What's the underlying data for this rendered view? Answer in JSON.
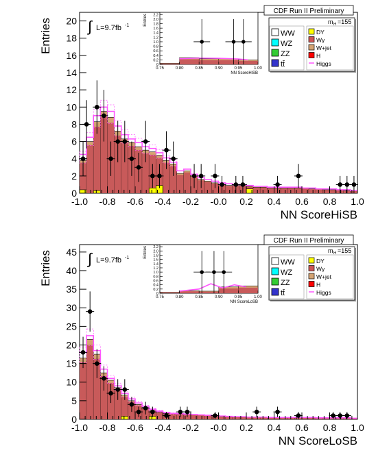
{
  "chart_data": [
    {
      "type": "bar",
      "xlabel": "NN ScoreHiSB",
      "ylabel": "Entries",
      "lumi_label": "L=9.7fb",
      "lumi_sup": "-1",
      "integral_symbol": "∫",
      "header": "CDF Run II Preliminary",
      "mass_label": "m",
      "mass_sub": "H",
      "mass_value": "=155",
      "xlim": [
        -1.0,
        1.0
      ],
      "ylim": [
        0,
        21
      ],
      "x_ticks": [
        "-1.0",
        "-0.8",
        "-0.6",
        "-0.4",
        "-0.2",
        "-0.0",
        "0.2",
        "0.4",
        "0.6",
        "0.8",
        "1.0"
      ],
      "y_ticks": [
        "0",
        "2",
        "4",
        "6",
        "8",
        "10",
        "12",
        "14",
        "16",
        "18",
        "20"
      ],
      "legend_left": [
        "WW",
        "WZ",
        "ZZ",
        "tt̄"
      ],
      "legend_right": [
        "DY",
        "Wγ",
        "W+jet",
        "H",
        "Higgs"
      ],
      "bin_edges_range": [
        -1.0,
        1.0
      ],
      "n_bins": 40,
      "background_total": [
        3.8,
        6.0,
        8.3,
        9.5,
        8.8,
        7.2,
        6.3,
        5.9,
        5.4,
        5.0,
        4.8,
        4.4,
        3.8,
        3.4,
        2.3,
        2.6,
        2.0,
        1.6,
        1.4,
        1.2,
        1.0,
        0.9,
        0.9,
        0.9,
        0.8,
        0.7,
        0.7,
        0.6,
        0.6,
        0.6,
        0.6,
        0.6,
        0.6,
        0.5,
        0.5,
        0.4,
        0.4,
        0.4,
        0.3,
        0.3
      ],
      "dy": [
        0.4,
        0.0,
        0.3,
        0.0,
        0.0,
        0.0,
        0.0,
        0.0,
        0.0,
        0.0,
        0.6,
        0.9,
        0.0,
        0.0,
        0.0,
        0.0,
        0.0,
        0.0,
        0.0,
        0.0,
        0.0,
        0.0,
        0.0,
        0.0,
        0.5,
        0.0,
        0.0,
        0.0,
        0.0,
        0.0,
        0.0,
        0.0,
        0.0,
        0.0,
        0.0,
        0.0,
        0.0,
        0.0,
        0.0,
        0.0
      ],
      "higgs": [
        4.5,
        6.5,
        9.0,
        10.0,
        9.5,
        7.8,
        6.8,
        6.3,
        5.9,
        5.4,
        5.2,
        4.7,
        4.1,
        3.6,
        2.6,
        2.8,
        2.2,
        1.8,
        1.6,
        1.4,
        1.2,
        1.1,
        1.0,
        1.0,
        0.9,
        0.8,
        0.8,
        0.7,
        0.7,
        0.7,
        0.7,
        0.7,
        0.6,
        0.6,
        0.5,
        0.5,
        0.5,
        0.4,
        0.4,
        0.3
      ],
      "data_points": [
        {
          "x": -0.975,
          "y": 4,
          "err": 2.0
        },
        {
          "x": -0.95,
          "y": 8,
          "err": 2.8
        },
        {
          "x": -0.875,
          "y": 10,
          "err": 3.1
        },
        {
          "x": -0.825,
          "y": 9,
          "err": 3.0
        },
        {
          "x": -0.775,
          "y": 4,
          "err": 2.0
        },
        {
          "x": -0.725,
          "y": 6,
          "err": 2.4
        },
        {
          "x": -0.675,
          "y": 6,
          "err": 2.4
        },
        {
          "x": -0.625,
          "y": 4,
          "err": 2.0
        },
        {
          "x": -0.575,
          "y": 3,
          "err": 1.7
        },
        {
          "x": -0.525,
          "y": 6,
          "err": 2.4
        },
        {
          "x": -0.475,
          "y": 2,
          "err": 1.4
        },
        {
          "x": -0.425,
          "y": 2,
          "err": 1.4
        },
        {
          "x": -0.375,
          "y": 5,
          "err": 2.2
        },
        {
          "x": -0.325,
          "y": 4,
          "err": 2.0
        },
        {
          "x": -0.175,
          "y": 2,
          "err": 1.4
        },
        {
          "x": -0.125,
          "y": 2,
          "err": 1.4
        },
        {
          "x": -0.025,
          "y": 2,
          "err": 1.4
        },
        {
          "x": 0.025,
          "y": 1,
          "err": 1.0
        },
        {
          "x": 0.125,
          "y": 1,
          "err": 1.0
        },
        {
          "x": 0.175,
          "y": 1,
          "err": 1.0
        },
        {
          "x": 0.425,
          "y": 1,
          "err": 1.0
        },
        {
          "x": 0.575,
          "y": 2,
          "err": 1.4
        },
        {
          "x": 0.875,
          "y": 1,
          "err": 1.0
        },
        {
          "x": 0.925,
          "y": 1,
          "err": 1.0
        },
        {
          "x": 0.975,
          "y": 1,
          "err": 1.0
        }
      ],
      "inset": {
        "xlabel": "NN ScoreHiSB",
        "ylabel": "Entries",
        "xlim": [
          0.75,
          1.0
        ],
        "ylim": [
          0,
          2.3
        ],
        "x_ticks": [
          "0.75",
          "0.80",
          "0.85",
          "0.90",
          "0.95",
          "1.00"
        ],
        "y_ticks": [
          "0",
          "0.2",
          "0.4",
          "0.6",
          "0.8",
          "1.0",
          "1.2",
          "1.4",
          "1.6",
          "1.8",
          "2.0",
          "2.2"
        ],
        "bins_x": [
          0.75,
          0.8,
          0.85,
          0.9,
          0.95,
          1.0
        ],
        "background": [
          0.05,
          0.3,
          0.25,
          0.25,
          0.2
        ],
        "higgs_x": [
          0.8,
          0.85,
          0.9,
          0.95,
          0.975
        ],
        "higgs_y": [
          0.25,
          0.28,
          0.27,
          0.24,
          0.2
        ],
        "points": [
          {
            "x": 0.857,
            "y": 1.0,
            "err": 1.0
          },
          {
            "x": 0.938,
            "y": 1.0,
            "err": 1.0
          },
          {
            "x": 0.963,
            "y": 1.0,
            "err": 1.0
          }
        ]
      }
    },
    {
      "type": "bar",
      "xlabel": "NN ScoreLoSB",
      "ylabel": "Entries",
      "lumi_label": "L=9.7fb",
      "lumi_sup": "-1",
      "integral_symbol": "∫",
      "header": "CDF Run II Preliminary",
      "mass_label": "m",
      "mass_sub": "H",
      "mass_value": "=155",
      "xlim": [
        -1.0,
        1.0
      ],
      "ylim": [
        0,
        47
      ],
      "x_ticks": [
        "-1.0",
        "-0.8",
        "-0.6",
        "-0.4",
        "-0.2",
        "-0.0",
        "0.2",
        "0.4",
        "0.6",
        "0.8",
        "1.0"
      ],
      "y_ticks": [
        "0",
        "5",
        "10",
        "15",
        "20",
        "25",
        "30",
        "35",
        "40",
        "45"
      ],
      "legend_left": [
        "WW",
        "WZ",
        "ZZ",
        "tt̄"
      ],
      "legend_right": [
        "DY",
        "Wγ",
        "W+jet",
        "H",
        "Higgs"
      ],
      "bin_edges_range": [
        -1.0,
        1.0
      ],
      "n_bins": 40,
      "background_total": [
        16.5,
        21.5,
        17.5,
        12.5,
        10.5,
        8.5,
        6.5,
        5.0,
        4.0,
        3.2,
        2.4,
        2.0,
        1.6,
        1.5,
        1.4,
        1.3,
        1.3,
        1.2,
        1.1,
        1.0,
        0.8,
        0.7,
        0.7,
        0.6,
        0.6,
        0.6,
        0.5,
        0.5,
        0.5,
        0.5,
        0.5,
        0.5,
        0.5,
        0.4,
        0.4,
        0.4,
        0.4,
        0.4,
        0.4,
        0.3
      ],
      "dy": [
        0.0,
        0.0,
        0.0,
        0.0,
        0.0,
        0.0,
        0.8,
        0.0,
        0.0,
        0.0,
        0.8,
        0.0,
        0.0,
        0.0,
        0.0,
        0.0,
        0.0,
        0.0,
        0.0,
        0.0,
        0.0,
        0.0,
        0.0,
        0.0,
        0.0,
        0.0,
        0.0,
        0.0,
        0.0,
        0.0,
        0.0,
        0.0,
        0.0,
        0.0,
        0.0,
        0.0,
        0.0,
        0.0,
        0.0,
        0.0
      ],
      "higgs": [
        18.0,
        22.5,
        18.5,
        13.5,
        11.0,
        9.0,
        7.0,
        5.5,
        4.4,
        3.5,
        2.7,
        2.2,
        1.8,
        1.6,
        1.5,
        1.4,
        1.3,
        1.2,
        1.1,
        1.0,
        0.9,
        0.8,
        0.7,
        0.7,
        0.6,
        0.6,
        0.6,
        0.5,
        0.5,
        0.5,
        0.5,
        0.5,
        0.5,
        0.5,
        0.4,
        0.4,
        0.4,
        0.4,
        0.4,
        0.3
      ],
      "data_points": [
        {
          "x": -0.975,
          "y": 18,
          "err": 4.2
        },
        {
          "x": -0.925,
          "y": 29,
          "err": 5.4
        },
        {
          "x": -0.875,
          "y": 15,
          "err": 3.9
        },
        {
          "x": -0.825,
          "y": 11,
          "err": 3.3
        },
        {
          "x": -0.775,
          "y": 7,
          "err": 2.6
        },
        {
          "x": -0.725,
          "y": 8,
          "err": 2.8
        },
        {
          "x": -0.675,
          "y": 8,
          "err": 2.8
        },
        {
          "x": -0.625,
          "y": 4,
          "err": 2.0
        },
        {
          "x": -0.575,
          "y": 2,
          "err": 1.4
        },
        {
          "x": -0.525,
          "y": 3,
          "err": 1.7
        },
        {
          "x": -0.475,
          "y": 2,
          "err": 1.4
        },
        {
          "x": -0.375,
          "y": 1,
          "err": 1.0
        },
        {
          "x": -0.275,
          "y": 2,
          "err": 1.4
        },
        {
          "x": -0.225,
          "y": 2,
          "err": 1.4
        },
        {
          "x": -0.025,
          "y": 1,
          "err": 1.0
        },
        {
          "x": 0.275,
          "y": 2,
          "err": 1.4
        },
        {
          "x": 0.425,
          "y": 2,
          "err": 1.4
        },
        {
          "x": 0.575,
          "y": 1,
          "err": 1.0
        },
        {
          "x": 0.825,
          "y": 1,
          "err": 1.0
        },
        {
          "x": 0.875,
          "y": 1,
          "err": 1.0
        },
        {
          "x": 0.925,
          "y": 1,
          "err": 1.0
        }
      ],
      "inset": {
        "xlabel": "NN ScoreLoSB",
        "ylabel": "Entries",
        "xlim": [
          0.75,
          1.0
        ],
        "ylim": [
          0,
          2.3
        ],
        "x_ticks": [
          "0.75",
          "0.80",
          "0.85",
          "0.90",
          "0.95",
          "1.00"
        ],
        "y_ticks": [
          "0",
          "0.2",
          "0.4",
          "0.6",
          "0.8",
          "1.0",
          "1.2",
          "1.4",
          "1.6",
          "1.8",
          "2.0",
          "2.2"
        ],
        "bins_x": [
          0.75,
          0.8,
          0.85,
          0.9,
          0.95,
          1.0
        ],
        "background": [
          0.05,
          0.12,
          0.1,
          0.3,
          0.35
        ],
        "higgs_x": [
          0.8,
          0.85,
          0.88,
          0.91,
          0.94,
          0.97
        ],
        "higgs_y": [
          0.1,
          0.2,
          0.45,
          0.25,
          0.4,
          0.3
        ],
        "points": [
          {
            "x": 0.857,
            "y": 1.0,
            "err": 1.0
          },
          {
            "x": 0.888,
            "y": 1.0,
            "err": 1.0
          },
          {
            "x": 0.913,
            "y": 1.0,
            "err": 1.0
          }
        ]
      }
    }
  ],
  "colors": {
    "ww": "#ffffff",
    "wz": "#00ffff",
    "zz": "#33cc33",
    "ttbar": "#3333cc",
    "dy": "#ffff00",
    "wgamma": "#cc5555",
    "wjet": "#d4a373",
    "h": "#ff0000",
    "higgs": "#ff33ff",
    "background_fill": "#c85a5a",
    "band": "#ff55ff"
  }
}
